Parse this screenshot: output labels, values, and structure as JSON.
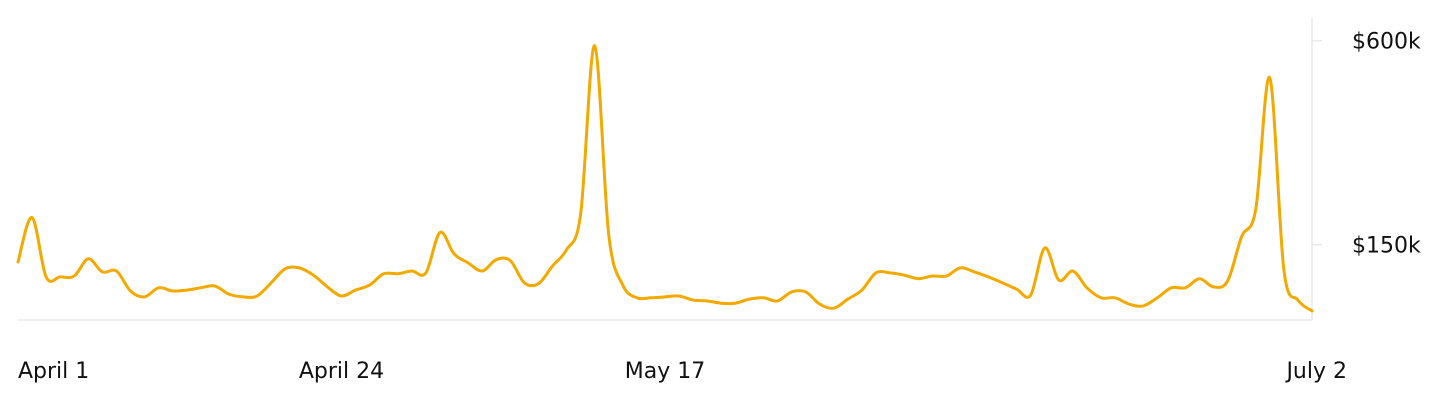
{
  "chart_data": {
    "type": "line",
    "title": "",
    "xlabel": "",
    "ylabel": "",
    "x_tick_labels": [
      "April 1",
      "April 24",
      "May 17",
      "July 2"
    ],
    "x_tick_dates": [
      "Apr 1",
      "Apr 24",
      "May 17",
      "Jul 2"
    ],
    "y_tick_labels": [
      "$600k",
      "$150k"
    ],
    "y_tick_values": [
      600000,
      150000
    ],
    "ylim": [
      -16000,
      650000
    ],
    "grid": false,
    "legend": "none",
    "line_color": "#F2A900",
    "x": [
      "Apr 1",
      "Apr 2",
      "Apr 3",
      "Apr 4",
      "Apr 5",
      "Apr 6",
      "Apr 7",
      "Apr 8",
      "Apr 9",
      "Apr 10",
      "Apr 11",
      "Apr 12",
      "Apr 13",
      "Apr 14",
      "Apr 15",
      "Apr 16",
      "Apr 17",
      "Apr 18",
      "Apr 19",
      "Apr 20",
      "Apr 21",
      "Apr 22",
      "Apr 23",
      "Apr 24",
      "Apr 25",
      "Apr 26",
      "Apr 27",
      "Apr 28",
      "Apr 29",
      "Apr 30",
      "May 1",
      "May 2",
      "May 3",
      "May 4",
      "May 5",
      "May 6",
      "May 7",
      "May 8",
      "May 9",
      "May 10",
      "May 11",
      "May 12",
      "May 13",
      "May 14",
      "May 15",
      "May 16",
      "May 17",
      "May 18",
      "May 19",
      "May 20",
      "May 21",
      "May 22",
      "May 23",
      "May 24",
      "May 25",
      "May 26",
      "May 27",
      "May 28",
      "May 29",
      "May 30",
      "May 31",
      "Jun 1",
      "Jun 2",
      "Jun 3",
      "Jun 4",
      "Jun 5",
      "Jun 6",
      "Jun 7",
      "Jun 8",
      "Jun 9",
      "Jun 10",
      "Jun 11",
      "Jun 12",
      "Jun 13",
      "Jun 14",
      "Jun 15",
      "Jun 16",
      "Jun 17",
      "Jun 18",
      "Jun 19",
      "Jun 20",
      "Jun 21",
      "Jun 22",
      "Jun 23",
      "Jun 24",
      "Jun 25",
      "Jun 26",
      "Jun 27",
      "Jun 28",
      "Jun 29",
      "Jun 30",
      "Jul 1",
      "Jul 2"
    ],
    "series": [
      {
        "values": [
          112000,
          210000,
          79000,
          79000,
          81000,
          119000,
          90000,
          92000,
          48000,
          35000,
          55000,
          48000,
          50000,
          55000,
          59000,
          41000,
          35000,
          37000,
          66000,
          97000,
          99000,
          83000,
          57000,
          37000,
          50000,
          61000,
          86000,
          86000,
          92000,
          88000,
          177000,
          130000,
          110000,
          92000,
          117000,
          115000,
          66000,
          64000,
          103000,
          139000,
          217000,
          589000,
          172000,
          61000,
          33000,
          33000,
          35000,
          37000,
          28000,
          26000,
          21000,
          21000,
          30000,
          33000,
          26000,
          46000,
          46000,
          19000,
          10000,
          30000,
          50000,
          88000,
          88000,
          83000,
          75000,
          81000,
          81000,
          99000,
          90000,
          79000,
          66000,
          52000,
          39000,
          143000,
          72000,
          92000,
          55000,
          33000,
          33000,
          19000,
          15000,
          33000,
          55000,
          55000,
          75000,
          57000,
          70000,
          168000,
          228000,
          518000,
          95000,
          28000,
          4000
        ]
      }
    ]
  }
}
